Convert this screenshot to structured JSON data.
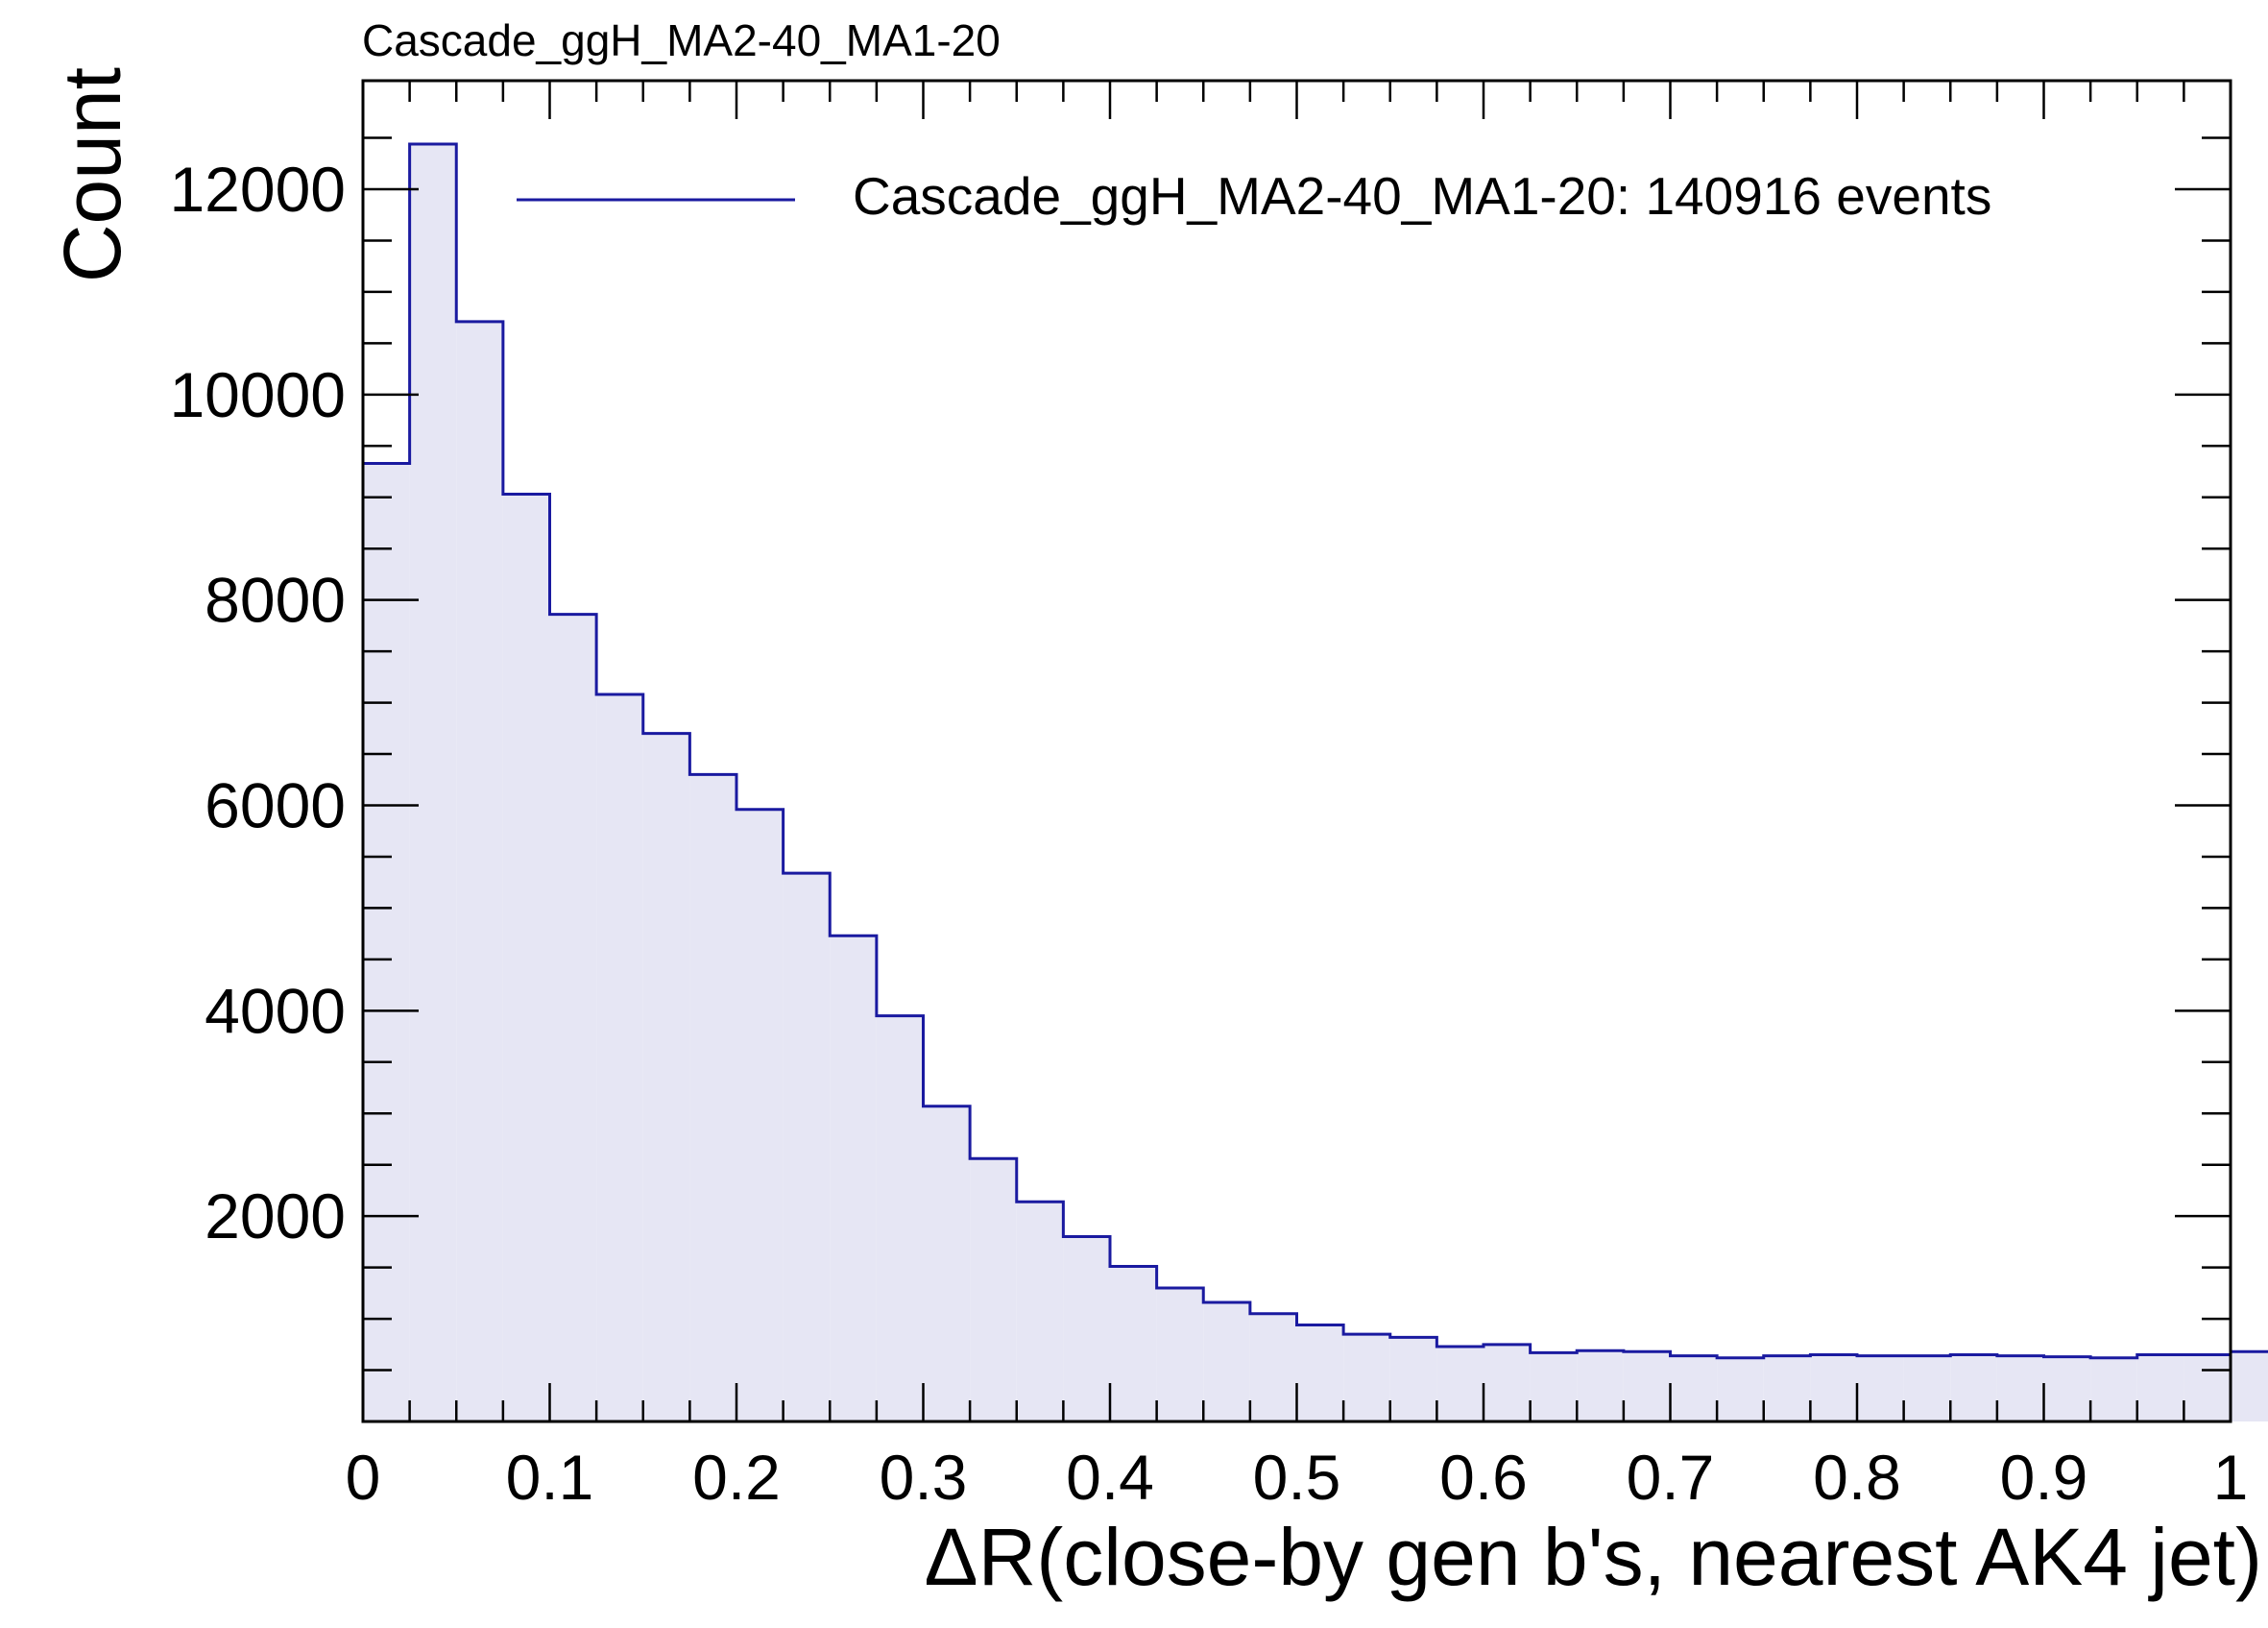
{
  "chart_data": {
    "type": "histogram",
    "title": "Cascade_ggH_MA2-40_MA1-20",
    "xlabel": "ΔR(close-by gen b's, nearest AK4 jet)",
    "ylabel": "Count",
    "xlim": [
      0,
      1
    ],
    "ylim": [
      0,
      13000
    ],
    "bin_width": 0.025,
    "x_ticks": [
      "0",
      "0.1",
      "0.2",
      "0.3",
      "0.4",
      "0.5",
      "0.6",
      "0.7",
      "0.8",
      "0.9",
      "1"
    ],
    "y_ticks": [
      "2000",
      "4000",
      "6000",
      "8000",
      "10000",
      "12000"
    ],
    "legend_position": "top-right",
    "series": [
      {
        "name": "Cascade_ggH_MA2-40_MA1-20: 140916 events",
        "line_color": "#1a1aa0",
        "fill_color": "#e6e6f4",
        "bin_edges_start": 0,
        "values": [
          9330,
          12440,
          10710,
          9030,
          7860,
          7080,
          6700,
          6300,
          5960,
          5340,
          4730,
          3950,
          3070,
          2560,
          2140,
          1800,
          1510,
          1300,
          1160,
          1050,
          940,
          850,
          820,
          730,
          750,
          670,
          690,
          680,
          640,
          620,
          640,
          650,
          640,
          640,
          650,
          640,
          630,
          620,
          650,
          650,
          680
        ]
      }
    ]
  }
}
